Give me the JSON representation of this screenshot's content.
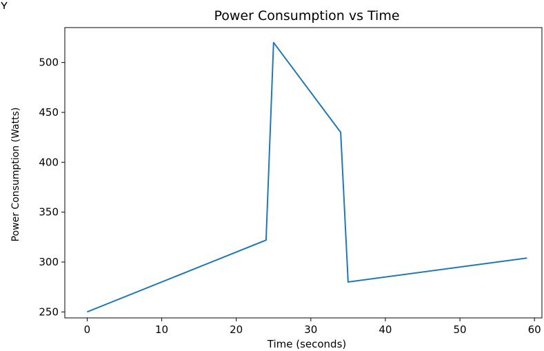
{
  "chart_data": {
    "type": "line",
    "title": "Power Consumption vs Time",
    "xlabel": "Time (seconds)",
    "ylabel": "Power Consumption (Watts)",
    "xlim": [
      -3,
      61
    ],
    "ylim": [
      244,
      535
    ],
    "x_ticks": [
      0,
      10,
      20,
      30,
      40,
      50,
      60
    ],
    "y_ticks": [
      250,
      300,
      350,
      400,
      450,
      500
    ],
    "x_tick_labels": [
      "0",
      "10",
      "20",
      "30",
      "40",
      "50",
      "60"
    ],
    "y_tick_labels": [
      "250",
      "300",
      "350",
      "400",
      "450",
      "500"
    ],
    "grid": false,
    "series": [
      {
        "color": "#1f77b4",
        "x": [
          0,
          24,
          25,
          34,
          35,
          59
        ],
        "y": [
          250,
          322,
          520,
          430,
          280,
          304
        ]
      }
    ]
  }
}
